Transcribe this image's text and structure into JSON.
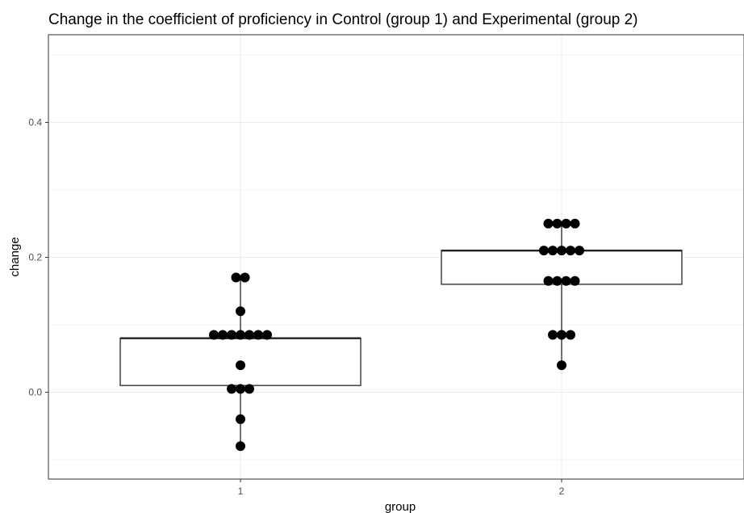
{
  "chart_data": {
    "type": "boxplot",
    "title": "Change in the coefficient of proficiency in Control (group 1) and Experimental (group 2)",
    "xlabel": "group",
    "ylabel": "change",
    "categories": [
      "1",
      "2"
    ],
    "ylim": [
      -0.13,
      0.53
    ],
    "yticks": [
      0.0,
      0.2,
      0.4
    ],
    "ytick_labels": [
      "0.0",
      "0.2",
      "0.4"
    ],
    "grid": true,
    "colors": {
      "box_fill": "#ffffff",
      "box_stroke": "#333333",
      "dot": "#000000",
      "grid": "#ebebeb"
    },
    "boxes": [
      {
        "category": "1",
        "whisker_low": -0.08,
        "q1": 0.01,
        "median": 0.08,
        "q3": 0.08,
        "whisker_high": 0.17
      },
      {
        "category": "2",
        "whisker_low": 0.04,
        "q1": 0.16,
        "median": 0.21,
        "q3": 0.21,
        "whisker_high": 0.25
      }
    ],
    "points": [
      {
        "category": "1",
        "values": [
          0.17,
          0.17,
          0.12,
          0.085,
          0.085,
          0.085,
          0.085,
          0.085,
          0.085,
          0.085,
          0.04,
          0.005,
          0.005,
          0.005,
          -0.04,
          -0.08
        ]
      },
      {
        "category": "2",
        "values": [
          0.25,
          0.25,
          0.25,
          0.25,
          0.21,
          0.21,
          0.21,
          0.21,
          0.21,
          0.165,
          0.165,
          0.165,
          0.165,
          0.085,
          0.085,
          0.085,
          0.04
        ]
      }
    ]
  }
}
